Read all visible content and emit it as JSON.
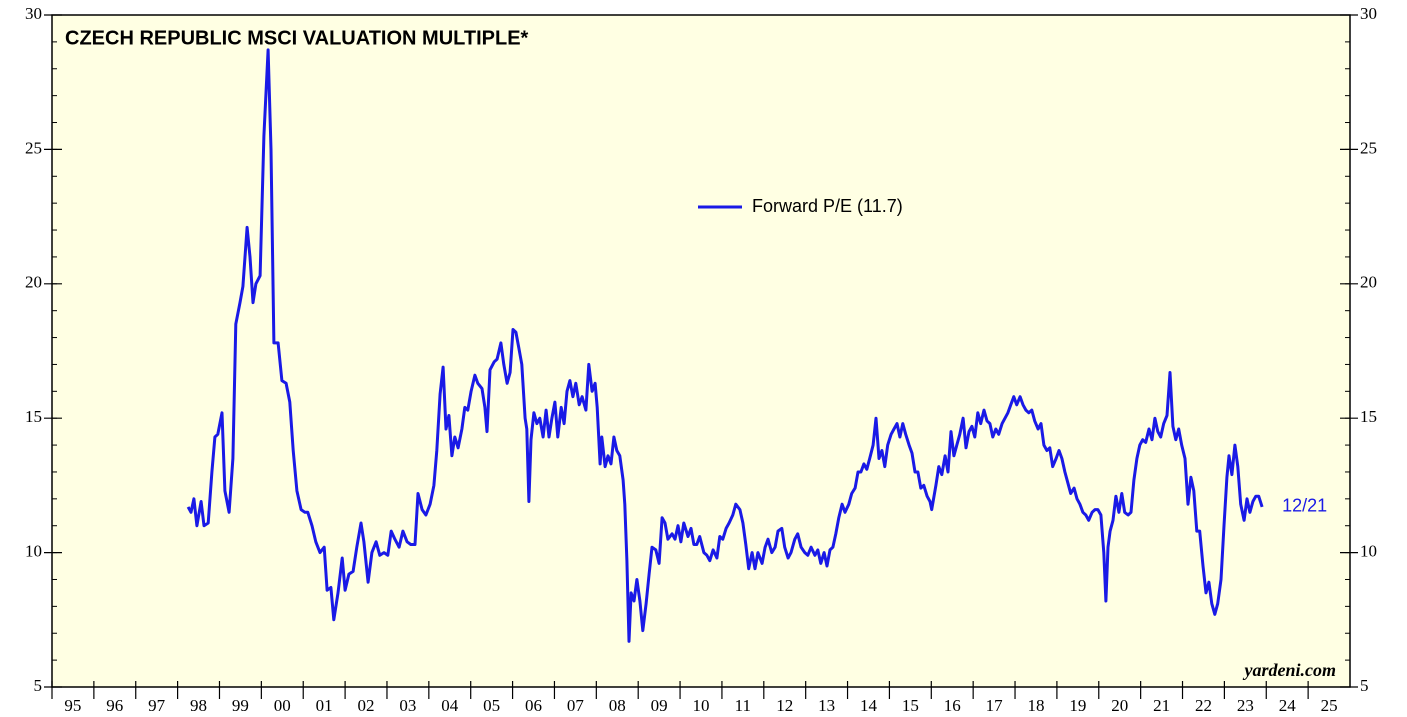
{
  "chart_data": {
    "type": "line",
    "title": "CZECH REPUBLIC MSCI VALUATION MULTIPLE*",
    "annotation": "12/21",
    "watermark": "yardeni.com",
    "xlim": [
      1995,
      2026
    ],
    "xticks": [
      {
        "value": 1995,
        "label": "95"
      },
      {
        "value": 1996,
        "label": "96"
      },
      {
        "value": 1997,
        "label": "97"
      },
      {
        "value": 1998,
        "label": "98"
      },
      {
        "value": 1999,
        "label": "99"
      },
      {
        "value": 2000,
        "label": "00"
      },
      {
        "value": 2001,
        "label": "01"
      },
      {
        "value": 2002,
        "label": "02"
      },
      {
        "value": 2003,
        "label": "03"
      },
      {
        "value": 2004,
        "label": "04"
      },
      {
        "value": 2005,
        "label": "05"
      },
      {
        "value": 2006,
        "label": "06"
      },
      {
        "value": 2007,
        "label": "07"
      },
      {
        "value": 2008,
        "label": "08"
      },
      {
        "value": 2009,
        "label": "09"
      },
      {
        "value": 2010,
        "label": "10"
      },
      {
        "value": 2011,
        "label": "11"
      },
      {
        "value": 2012,
        "label": "12"
      },
      {
        "value": 2013,
        "label": "13"
      },
      {
        "value": 2014,
        "label": "14"
      },
      {
        "value": 2015,
        "label": "15"
      },
      {
        "value": 2016,
        "label": "16"
      },
      {
        "value": 2017,
        "label": "17"
      },
      {
        "value": 2018,
        "label": "18"
      },
      {
        "value": 2019,
        "label": "19"
      },
      {
        "value": 2020,
        "label": "20"
      },
      {
        "value": 2021,
        "label": "21"
      },
      {
        "value": 2022,
        "label": "22"
      },
      {
        "value": 2023,
        "label": "23"
      },
      {
        "value": 2024,
        "label": "24"
      },
      {
        "value": 2025,
        "label": "25"
      }
    ],
    "ylim": [
      5,
      30
    ],
    "yticks": [
      5,
      10,
      15,
      20,
      25,
      30
    ],
    "y2lim": [
      5,
      30
    ],
    "y2ticks": [
      5,
      10,
      15,
      20,
      25,
      30
    ],
    "series": [
      {
        "name": "Forward P/E (11.7)",
        "color": "#1a1ae6",
        "x": [
          1998.25,
          1998.32,
          1998.39,
          1998.46,
          1998.56,
          1998.63,
          1998.73,
          1998.82,
          1998.89,
          1998.96,
          1999.06,
          1999.13,
          1999.23,
          1999.32,
          1999.39,
          1999.49,
          1999.56,
          1999.66,
          1999.73,
          1999.8,
          1999.87,
          1999.97,
          2000.06,
          2000.16,
          2000.23,
          2000.3,
          2000.4,
          2000.49,
          2000.59,
          2000.68,
          2000.76,
          2000.85,
          2000.95,
          2001.04,
          2001.11,
          2001.21,
          2001.3,
          2001.4,
          2001.5,
          2001.57,
          2001.66,
          2001.73,
          2001.83,
          2001.93,
          2002.0,
          2002.09,
          2002.19,
          2002.28,
          2002.38,
          2002.45,
          2002.55,
          2002.64,
          2002.74,
          2002.83,
          2002.93,
          2003.02,
          2003.1,
          2003.19,
          2003.29,
          2003.38,
          2003.48,
          2003.57,
          2003.67,
          2003.74,
          2003.84,
          2003.93,
          2004.03,
          2004.12,
          2004.19,
          2004.27,
          2004.34,
          2004.41,
          2004.48,
          2004.55,
          2004.62,
          2004.7,
          2004.79,
          2004.86,
          2004.93,
          2005.01,
          2005.1,
          2005.17,
          2005.27,
          2005.34,
          2005.39,
          2005.46,
          2005.56,
          2005.63,
          2005.72,
          2005.79,
          2005.87,
          2005.94,
          2006.01,
          2006.08,
          2006.15,
          2006.22,
          2006.3,
          2006.34,
          2006.39,
          2006.44,
          2006.51,
          2006.58,
          2006.65,
          2006.73,
          2006.8,
          2006.87,
          2006.94,
          2007.01,
          2007.08,
          2007.16,
          2007.23,
          2007.3,
          2007.37,
          2007.44,
          2007.51,
          2007.59,
          2007.66,
          2007.75,
          2007.82,
          2007.9,
          2007.97,
          2008.02,
          2008.09,
          2008.13,
          2008.21,
          2008.28,
          2008.35,
          2008.42,
          2008.49,
          2008.56,
          2008.64,
          2008.68,
          2008.73,
          2008.78,
          2008.83,
          2008.9,
          2008.97,
          2009.04,
          2009.11,
          2009.19,
          2009.26,
          2009.33,
          2009.42,
          2009.5,
          2009.57,
          2009.64,
          2009.71,
          2009.81,
          2009.88,
          2009.95,
          2010.02,
          2010.09,
          2010.19,
          2010.26,
          2010.33,
          2010.4,
          2010.47,
          2010.57,
          2010.64,
          2010.71,
          2010.79,
          2010.88,
          2010.95,
          2011.02,
          2011.1,
          2011.17,
          2011.26,
          2011.33,
          2011.43,
          2011.5,
          2011.57,
          2011.64,
          2011.72,
          2011.79,
          2011.86,
          2011.96,
          2012.03,
          2012.1,
          2012.19,
          2012.27,
          2012.34,
          2012.43,
          2012.5,
          2012.58,
          2012.65,
          2012.74,
          2012.81,
          2012.89,
          2012.98,
          2013.05,
          2013.13,
          2013.22,
          2013.29,
          2013.36,
          2013.44,
          2013.51,
          2013.58,
          2013.65,
          2013.72,
          2013.79,
          2013.87,
          2013.94,
          2014.03,
          2014.1,
          2014.18,
          2014.25,
          2014.32,
          2014.39,
          2014.46,
          2014.53,
          2014.61,
          2014.68,
          2014.75,
          2014.82,
          2014.89,
          2014.96,
          2015.04,
          2015.11,
          2015.18,
          2015.25,
          2015.32,
          2015.39,
          2015.47,
          2015.54,
          2015.61,
          2015.68,
          2015.75,
          2015.82,
          2015.9,
          2015.97,
          2016.01,
          2016.11,
          2016.18,
          2016.25,
          2016.33,
          2016.4,
          2016.47,
          2016.54,
          2016.61,
          2016.68,
          2016.76,
          2016.83,
          2016.9,
          2016.97,
          2017.04,
          2017.11,
          2017.18,
          2017.26,
          2017.33,
          2017.4,
          2017.47,
          2017.54,
          2017.61,
          2017.69,
          2017.76,
          2017.83,
          2017.9,
          2017.97,
          2018.04,
          2018.12,
          2018.19,
          2018.26,
          2018.33,
          2018.4,
          2018.47,
          2018.55,
          2018.62,
          2018.69,
          2018.76,
          2018.83,
          2018.9,
          2018.98,
          2019.05,
          2019.12,
          2019.19,
          2019.26,
          2019.33,
          2019.41,
          2019.48,
          2019.55,
          2019.62,
          2019.69,
          2019.76,
          2019.84,
          2019.91,
          2019.98,
          2020.05,
          2020.12,
          2020.17,
          2020.22,
          2020.27,
          2020.34,
          2020.41,
          2020.48,
          2020.55,
          2020.62,
          2020.7,
          2020.77,
          2020.84,
          2020.91,
          2020.98,
          2021.05,
          2021.12,
          2021.2,
          2021.27,
          2021.34,
          2021.41,
          2021.48,
          2021.55,
          2021.63,
          2021.7,
          2021.77,
          2021.84,
          2021.91,
          2021.98,
          2022.06,
          2022.13,
          2022.2,
          2022.27,
          2022.34,
          2022.41,
          2022.49,
          2022.56,
          2022.63,
          2022.7,
          2022.77,
          2022.84,
          2022.92,
          2022.99,
          2023.06,
          2023.11,
          2023.18,
          2023.25,
          2023.32,
          2023.39,
          2023.47,
          2023.54,
          2023.61,
          2023.68,
          2023.75,
          2023.82,
          2023.9
        ],
        "values": [
          11.7,
          11.5,
          12.0,
          11.0,
          11.9,
          11.0,
          11.1,
          13.0,
          14.3,
          14.4,
          15.2,
          12.3,
          11.5,
          13.5,
          18.5,
          19.3,
          19.9,
          22.1,
          21.0,
          19.3,
          20.0,
          20.3,
          25.5,
          28.7,
          25.0,
          17.8,
          17.8,
          16.4,
          16.3,
          15.6,
          13.8,
          12.3,
          11.6,
          11.5,
          11.5,
          11.0,
          10.4,
          10.0,
          10.2,
          8.6,
          8.7,
          7.5,
          8.5,
          9.8,
          8.6,
          9.2,
          9.3,
          10.2,
          11.1,
          10.4,
          8.9,
          10.0,
          10.4,
          9.9,
          10.0,
          9.9,
          10.8,
          10.5,
          10.2,
          10.8,
          10.4,
          10.3,
          10.3,
          12.2,
          11.6,
          11.4,
          11.8,
          12.5,
          13.8,
          15.9,
          16.9,
          14.6,
          15.1,
          13.6,
          14.3,
          13.9,
          14.6,
          15.4,
          15.3,
          16.0,
          16.6,
          16.3,
          16.1,
          15.4,
          14.5,
          16.8,
          17.1,
          17.2,
          17.8,
          17.0,
          16.3,
          16.7,
          18.3,
          18.2,
          17.6,
          17.0,
          15.0,
          14.6,
          11.9,
          14.2,
          15.2,
          14.8,
          15.0,
          14.3,
          15.3,
          14.3,
          15.0,
          15.6,
          14.3,
          15.4,
          14.8,
          16.0,
          16.4,
          15.8,
          16.3,
          15.5,
          15.8,
          15.3,
          17.0,
          16.0,
          16.3,
          15.4,
          13.3,
          14.3,
          13.2,
          13.6,
          13.3,
          14.3,
          13.8,
          13.6,
          12.7,
          11.8,
          9.7,
          6.7,
          8.5,
          8.2,
          9.0,
          8.2,
          7.1,
          8.1,
          9.2,
          10.2,
          10.1,
          9.6,
          11.3,
          11.1,
          10.5,
          10.7,
          10.5,
          11.0,
          10.4,
          11.1,
          10.6,
          10.9,
          10.3,
          10.3,
          10.6,
          10.0,
          9.9,
          9.7,
          10.1,
          9.8,
          10.6,
          10.5,
          10.9,
          11.1,
          11.4,
          11.8,
          11.6,
          11.1,
          10.3,
          9.4,
          10.0,
          9.4,
          10.0,
          9.6,
          10.2,
          10.5,
          10.0,
          10.2,
          10.8,
          10.9,
          10.2,
          9.8,
          10.0,
          10.5,
          10.7,
          10.2,
          10.0,
          9.9,
          10.2,
          9.9,
          10.1,
          9.6,
          10.0,
          9.5,
          10.1,
          10.2,
          10.7,
          11.3,
          11.8,
          11.5,
          11.8,
          12.2,
          12.4,
          13.0,
          13.0,
          13.3,
          13.1,
          13.5,
          14.0,
          15.0,
          13.5,
          13.8,
          13.2,
          14.0,
          14.4,
          14.6,
          14.8,
          14.3,
          14.8,
          14.4,
          14.0,
          13.7,
          13.0,
          13.0,
          12.4,
          12.5,
          12.1,
          11.9,
          11.6,
          12.5,
          13.2,
          12.9,
          13.6,
          13.0,
          14.5,
          13.6,
          14.0,
          14.4,
          15.0,
          13.9,
          14.5,
          14.7,
          14.3,
          15.2,
          14.8,
          15.3,
          14.9,
          14.8,
          14.3,
          14.6,
          14.4,
          14.8,
          15.0,
          15.2,
          15.5,
          15.8,
          15.5,
          15.8,
          15.5,
          15.3,
          15.2,
          15.3,
          14.9,
          14.6,
          14.8,
          14.0,
          13.8,
          13.9,
          13.2,
          13.5,
          13.8,
          13.5,
          13.0,
          12.6,
          12.2,
          12.4,
          12.0,
          11.8,
          11.5,
          11.4,
          11.2,
          11.5,
          11.6,
          11.6,
          11.4,
          10.0,
          8.2,
          10.2,
          10.8,
          11.2,
          12.1,
          11.5,
          12.2,
          11.5,
          11.4,
          11.5,
          12.7,
          13.5,
          14.0,
          14.2,
          14.1,
          14.6,
          14.2,
          15.0,
          14.5,
          14.3,
          14.8,
          15.1,
          16.7,
          14.7,
          14.2,
          14.6,
          14.0,
          13.5,
          11.8,
          12.8,
          12.3,
          10.8,
          10.8,
          9.5,
          8.5,
          8.9,
          8.1,
          7.7,
          8.1,
          9.0,
          11.0,
          12.8,
          13.6,
          12.9,
          14.0,
          13.2,
          11.8,
          11.2,
          12.0,
          11.5,
          11.9,
          12.1,
          12.1,
          11.7
        ]
      }
    ]
  }
}
